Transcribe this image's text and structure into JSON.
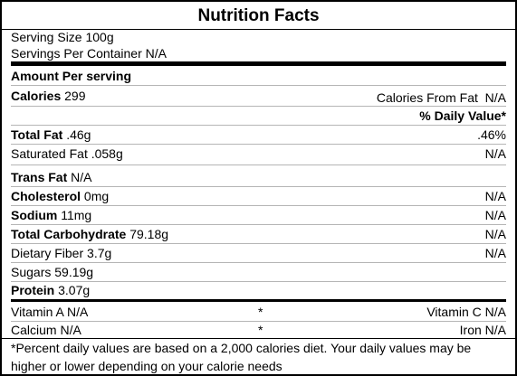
{
  "label": {
    "title": "Nutrition Facts",
    "serving_size": "Serving Size 100g",
    "servings_per_container": "Servings Per Container N/A",
    "amount_per_serving": "Amount Per serving",
    "calories": {
      "label": "Calories",
      "value": "299"
    },
    "calories_from_fat": {
      "label": "Calories From Fat",
      "value": "N/A"
    },
    "daily_value_header": "% Daily Value*",
    "nutrients": [
      {
        "name": "Total Fat",
        "amount": ".46g",
        "dv": ".46%",
        "bold": true
      },
      {
        "name": "Saturated Fat",
        "amount": ".058g",
        "dv": "N/A",
        "bold": false
      },
      {
        "name": "Trans Fat",
        "amount": "N/A",
        "dv": "",
        "bold": true
      },
      {
        "name": "Cholesterol",
        "amount": "0mg",
        "dv": "N/A",
        "bold": true
      },
      {
        "name": "Sodium",
        "amount": "11mg",
        "dv": "N/A",
        "bold": true
      },
      {
        "name": "Total Carbohydrate",
        "amount": "79.18g",
        "dv": "N/A",
        "bold": true
      },
      {
        "name": "Dietary Fiber",
        "amount": "3.7g",
        "dv": "N/A",
        "bold": false
      },
      {
        "name": "Sugars",
        "amount": "59.19g",
        "dv": "",
        "bold": false
      },
      {
        "name": "Protein",
        "amount": "3.07g",
        "dv": "",
        "bold": true
      }
    ],
    "vitamins": [
      {
        "left": "Vitamin A N/A",
        "star": "*",
        "right": "Vitamin C N/A"
      },
      {
        "left": "Calcium N/A",
        "star": "*",
        "right": "Iron N/A"
      }
    ],
    "footnote": "*Percent daily values are based on a 2,000 calories diet. Your daily values may be higher or lower depending on your calorie needs"
  }
}
